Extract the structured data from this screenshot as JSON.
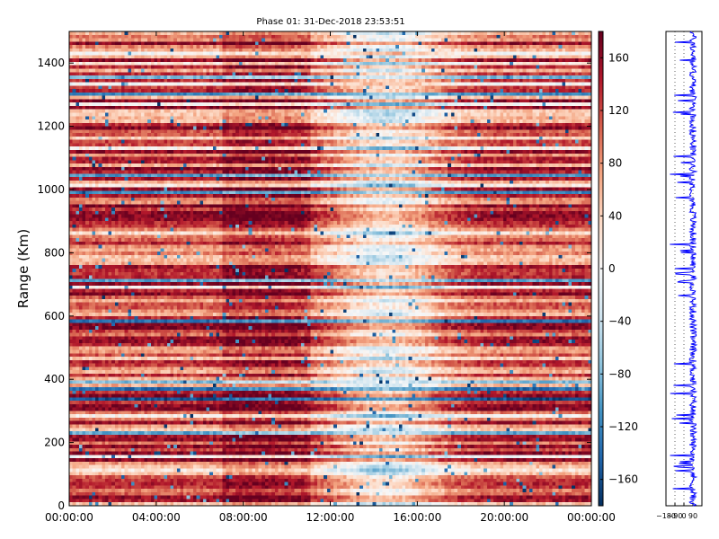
{
  "chart_data": {
    "type": "heatmap",
    "title": "Phase 01: 31-Dec-2018 23:53:51",
    "xlabel": "",
    "ylabel": "Range (Km)",
    "x_ticks": [
      "00:00:00",
      "04:00:00",
      "08:00:00",
      "12:00:00",
      "16:00:00",
      "20:00:00",
      "00:00:00"
    ],
    "y_ticks": [
      0,
      200,
      400,
      600,
      800,
      1000,
      1200,
      1400
    ],
    "xlim_hours": [
      0,
      24
    ],
    "ylim": [
      0,
      1500
    ],
    "colorbar": {
      "range": [
        -180,
        180
      ],
      "ticks": [
        160,
        120,
        80,
        40,
        0,
        -40,
        -80,
        -120,
        -160
      ],
      "colormap": "RdBu_r",
      "colors": {
        "low": "#053061",
        "mid": "#f7f7f7",
        "high": "#67001f"
      }
    },
    "profile_panel": {
      "xlim": [
        -180,
        180
      ],
      "x_ticks": [
        "-180",
        "-90",
        "0",
        "90"
      ],
      "line_color": "#0000ff"
    },
    "grid": false
  }
}
